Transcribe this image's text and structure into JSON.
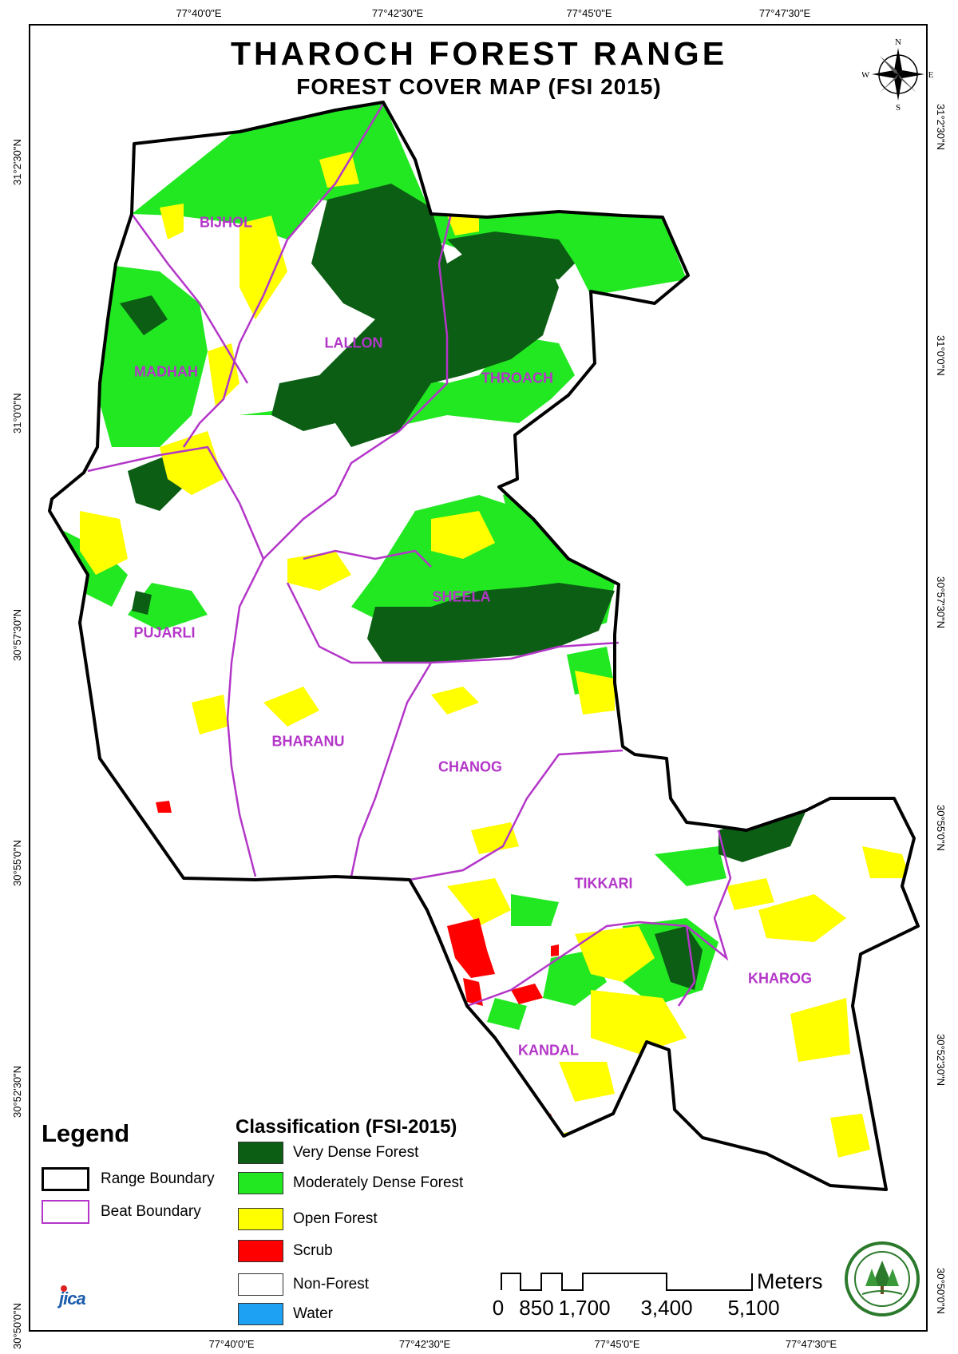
{
  "title": "THAROCH FOREST RANGE",
  "subtitle": "FOREST COVER MAP (FSI 2015)",
  "coordinates": {
    "top": [
      "77°40'0\"E",
      "77°42'30\"E",
      "77°45'0\"E",
      "77°47'30\"E"
    ],
    "bottom": [
      "77°40'0\"E",
      "77°42'30\"E",
      "77°45'0\"E",
      "77°47'30\"E"
    ],
    "left": [
      "31°2'30\"N",
      "31°0'0\"N",
      "30°57'30\"N",
      "30°55'0\"N",
      "30°52'30\"N",
      "30°50'0\"N"
    ],
    "right": [
      "31°2'30\"N",
      "31°0'0\"N",
      "30°57'30\"N",
      "30°55'0\"N",
      "30°52'30\"N",
      "30°50'0\"N"
    ]
  },
  "beats": {
    "bijhol": "BIJHOL",
    "lallon": "LALLON",
    "madhah": "MADHAH",
    "throach": "THROACH",
    "sheela": "SHEELA",
    "pujarli": "PUJARLI",
    "bharanu": "BHARANU",
    "chanog": "CHANOG",
    "tikkari": "TIKKARI",
    "kharog": "KHAROG",
    "kandal": "KANDAL"
  },
  "legend": {
    "heading": "Legend",
    "range_boundary": "Range Boundary",
    "beat_boundary": "Beat Boundary"
  },
  "classification": {
    "heading": "Classification (FSI-2015)",
    "items": [
      {
        "label": "Very Dense Forest",
        "color": "#0b5e13"
      },
      {
        "label": "Moderately Dense Forest",
        "color": "#22e822"
      },
      {
        "label": "Open Forest",
        "color": "#ffff00"
      },
      {
        "label": "Scrub",
        "color": "#ff0000"
      },
      {
        "label": "Non-Forest",
        "color": "#ffffff"
      },
      {
        "label": "Water",
        "color": "#1da1f2"
      }
    ]
  },
  "scale": {
    "unit": "Meters",
    "labels": [
      "0",
      "850",
      "1,700",
      "3,400",
      "5,100"
    ]
  },
  "compass": {
    "n": "N",
    "s": "S",
    "e": "E",
    "w": "W"
  },
  "logos": {
    "jica": "JICA",
    "emblem": "forest-department-emblem"
  },
  "colors": {
    "range_boundary": "#000000",
    "beat_boundary": "#b336c8"
  }
}
